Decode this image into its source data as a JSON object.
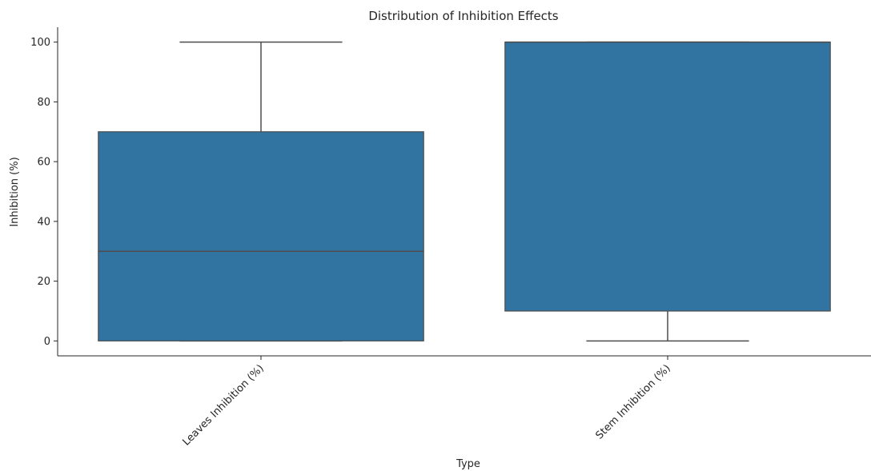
{
  "chart_data": {
    "type": "box",
    "title": "Distribution of Inhibition Effects",
    "xlabel": "Type",
    "ylabel": "Inhibition (%)",
    "ylim": [
      -5,
      105
    ],
    "yticks": [
      0,
      20,
      40,
      60,
      80,
      100
    ],
    "grid": false,
    "box_color": "#3274a1",
    "line_color": "#4d4d4d",
    "categories": [
      "Leaves Inhibition (%)",
      "Stem Inhibition (%)"
    ],
    "boxes": [
      {
        "category": "Leaves Inhibition (%)",
        "whisker_low": 0,
        "q1": 0,
        "median": 30,
        "q3": 70,
        "whisker_high": 100
      },
      {
        "category": "Stem Inhibition (%)",
        "whisker_low": 0,
        "q1": 10,
        "median": 100,
        "q3": 100,
        "whisker_high": 100
      }
    ]
  }
}
